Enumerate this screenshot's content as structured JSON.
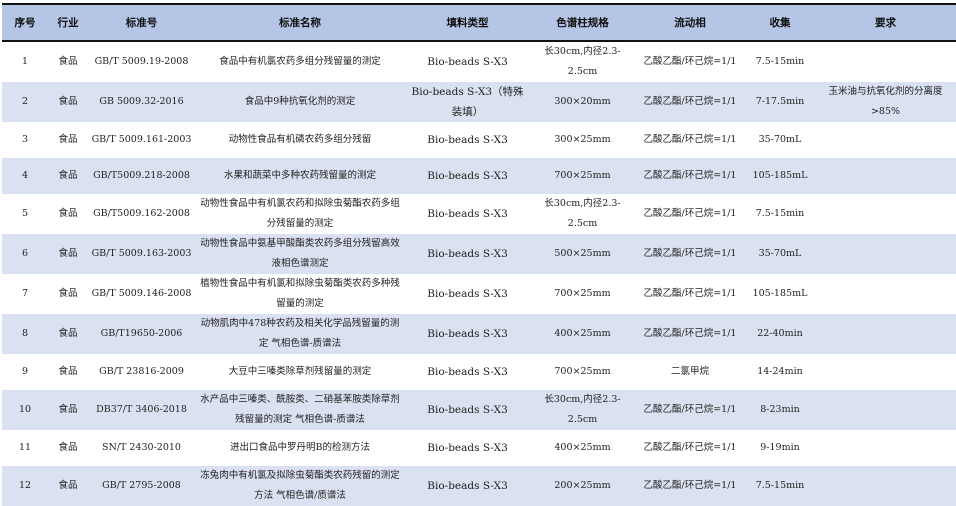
{
  "headers": [
    "序号",
    "行业",
    "标准号",
    "标准名称",
    "填料类型",
    "色谱柱规格",
    "流动相",
    "收集",
    "要求"
  ],
  "rows": [
    {
      "no": "1",
      "industry": "食品",
      "standard": "GB/T 5009.19-2008",
      "name": "食品中有机氯农药多组分残留量的测定",
      "filler": "Bio-beads S-X3",
      "column": "长30cm,内径2.3-2.5cm",
      "mobile": "乙酸乙酯/环己烷=1/1",
      "collect": "7.5-15min",
      "req": ""
    },
    {
      "no": "2",
      "industry": "食品",
      "standard": "GB 5009.32-2016",
      "name": "食品中9种抗氧化剂的测定",
      "filler": "Bio-beads S-X3（特殊装填）",
      "column": "300×20mm",
      "mobile": "乙酸乙酯/环己烷=1/1",
      "collect": "7-17.5min",
      "req": "玉米油与抗氧化剂的分离度>85%"
    },
    {
      "no": "3",
      "industry": "食品",
      "standard": "GB/T 5009.161-2003",
      "name": "动物性食品有机磷农药多组分残留",
      "filler": "Bio-beads S-X3",
      "column": "300×25mm",
      "mobile": "乙酸乙酯/环己烷=1/1",
      "collect": "35-70mL",
      "req": ""
    },
    {
      "no": "4",
      "industry": "食品",
      "standard": "GB/T5009.218-2008",
      "name": "水果和蔬菜中多种农药残留量的测定",
      "filler": "Bio-beads S-X3",
      "column": "700×25mm",
      "mobile": "乙酸乙酯/环己烷=1/1",
      "collect": "105-185mL",
      "req": ""
    },
    {
      "no": "5",
      "industry": "食品",
      "standard": "GB/T5009.162-2008",
      "name": "动物性食品中有机氯农药和拟除虫菊酯农药多组分残留量的测定",
      "filler": "Bio-beads S-X3",
      "column": "长30cm,内径2.3-2.5cm",
      "mobile": "乙酸乙酯/环己烷=1/1",
      "collect": "7.5-15min",
      "req": ""
    },
    {
      "no": "6",
      "industry": "食品",
      "standard": "GB/T 5009.163-2003",
      "name": "动物性食品中氨基甲酸酯类农药多组分残留高效液相色谱测定",
      "filler": "Bio-beads S-X3",
      "column": "500×25mm",
      "mobile": "乙酸乙酯/环己烷=1/1",
      "collect": "35-70mL",
      "req": ""
    },
    {
      "no": "7",
      "industry": "食品",
      "standard": "GB/T 5009.146-2008",
      "name": "植物性食品中有机氯和拟除虫菊酯类农药多种残留量的测定",
      "filler": "Bio-beads S-X3",
      "column": "700×25mm",
      "mobile": "乙酸乙酯/环己烷=1/1",
      "collect": "105-185mL",
      "req": ""
    },
    {
      "no": "8",
      "industry": "食品",
      "standard": "GB/T19650-2006",
      "name": "动物肌肉中478种农药及相关化学品残留量的测定 气相色谱-质谱法",
      "filler": "Bio-beads S-X3",
      "column": "400×25mm",
      "mobile": "乙酸乙酯/环己烷=1/1",
      "collect": "22-40min",
      "req": ""
    },
    {
      "no": "9",
      "industry": "食品",
      "standard": "GB/T 23816-2009",
      "name": "大豆中三嗪类除草剂残留量的测定",
      "filler": "Bio-beads S-X3",
      "column": "700×25mm",
      "mobile": "二氯甲烷",
      "collect": "14-24min",
      "req": ""
    },
    {
      "no": "10",
      "industry": "食品",
      "standard": "DB37/T 3406-2018",
      "name": "水产品中三嗪类、酰胺类、二硝基苯胺类除草剂残留量的测定 气相色谱-质谱法",
      "filler": "Bio-beads S-X3",
      "column": "长30cm,内径2.3-2.5cm",
      "mobile": "乙酸乙酯/环己烷=1/1",
      "collect": "8-23min",
      "req": ""
    },
    {
      "no": "11",
      "industry": "食品",
      "standard": "SN/T 2430-2010",
      "name": "进出口食品中罗丹明B的检测方法",
      "filler": "Bio-beads S-X3",
      "column": "400×25mm",
      "mobile": "乙酸乙酯/环己烷=1/1",
      "collect": "9-19min",
      "req": ""
    },
    {
      "no": "12",
      "industry": "食品",
      "standard": "GB/T 2795-2008",
      "name": "冻兔肉中有机氯及拟除虫菊酯类农药残留的测定方法 气相色谱/质谱法",
      "filler": "Bio-beads S-X3",
      "column": "200×25mm",
      "mobile": "乙酸乙酯/环己烷=1/1",
      "collect": "7.5-15min",
      "req": ""
    }
  ]
}
